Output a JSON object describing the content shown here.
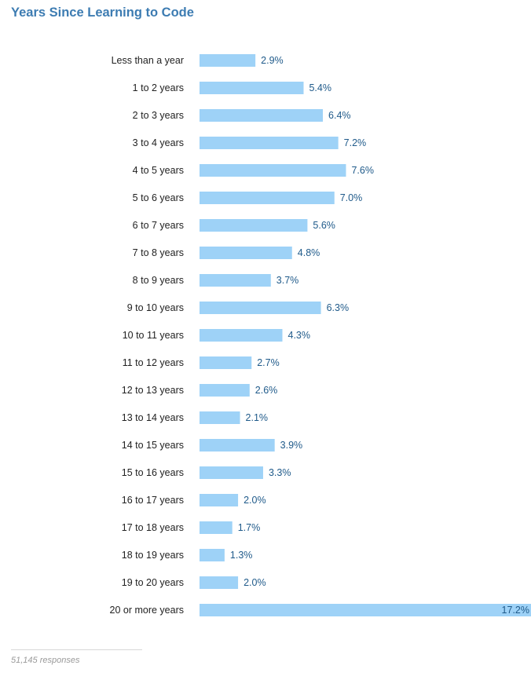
{
  "title": "Years Since Learning to Code",
  "footer": "51,145 responses",
  "colors": {
    "title": "#3d7cb2",
    "bar": "#9ed2f7",
    "value_label": "#1f5a8a",
    "category_label": "#222222"
  },
  "chart_data": {
    "type": "bar",
    "orientation": "horizontal",
    "title": "Years Since Learning to Code",
    "xlabel": "",
    "ylabel": "",
    "grid": false,
    "legend": "none",
    "value_suffix": "%",
    "categories": [
      "Less than a year",
      "1 to 2 years",
      "2 to 3 years",
      "3 to 4 years",
      "4 to 5 years",
      "5 to 6 years",
      "6 to 7 years",
      "7 to 8 years",
      "8 to 9 years",
      "9 to 10 years",
      "10 to 11 years",
      "11 to 12 years",
      "12 to 13 years",
      "13 to 14 years",
      "14 to 15 years",
      "15 to 16 years",
      "16 to 17 years",
      "17 to 18 years",
      "18 to 19 years",
      "19 to 20 years",
      "20 or more years"
    ],
    "values": [
      2.9,
      5.4,
      6.4,
      7.2,
      7.6,
      7.0,
      5.6,
      4.8,
      3.7,
      6.3,
      4.3,
      2.7,
      2.6,
      2.1,
      3.9,
      3.3,
      2.0,
      1.7,
      1.3,
      2.0,
      17.2
    ],
    "value_labels": [
      "2.9%",
      "5.4%",
      "6.4%",
      "7.2%",
      "7.6%",
      "7.0%",
      "5.6%",
      "4.8%",
      "3.7%",
      "6.3%",
      "4.3%",
      "2.7%",
      "2.6%",
      "2.1%",
      "3.9%",
      "3.3%",
      "2.0%",
      "1.7%",
      "1.3%",
      "2.0%",
      "17.2%"
    ],
    "xlim": [
      0,
      17.2
    ]
  }
}
